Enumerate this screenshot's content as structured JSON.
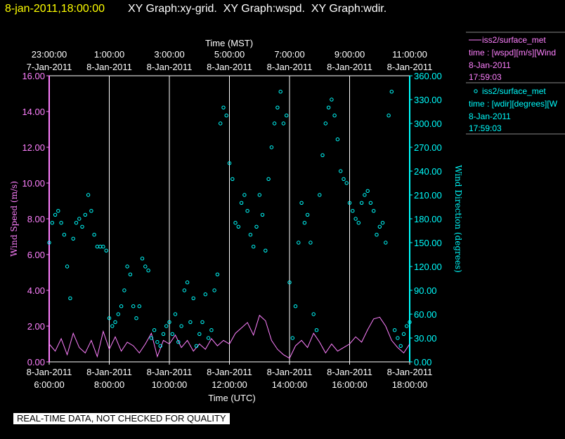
{
  "header": {
    "timestamp": "8-jan-2011,18:00:00",
    "graphs": "XY Graph:xy-grid.  XY Graph:wspd.  XY Graph:wdir."
  },
  "colors": {
    "wspd": "#ff80ff",
    "wdir": "#00ffff",
    "grid": "#ffffff",
    "timestamp": "#ffff00",
    "background": "#000000"
  },
  "legend": {
    "wspd": {
      "line1": "iss2/surface_met",
      "line2": "time : [wspd][m/s][Wind",
      "line3": "8-Jan-2011",
      "line4": "17:59:03"
    },
    "wdir": {
      "line1": "iss2/surface_met",
      "line2": "time : [wdir][degrees][W",
      "line3": "8-Jan-2011",
      "line4": "17:59:03"
    }
  },
  "quality_note": "REAL-TIME DATA, NOT CHECKED FOR QUALITY",
  "chart_data": {
    "type": "scatter",
    "top_axis": {
      "label": "Time (MST)",
      "ticks": [
        {
          "time": "23:00:00",
          "date": "7-Jan-2011",
          "utc_hour": 6
        },
        {
          "time": "1:00:00",
          "date": "8-Jan-2011",
          "utc_hour": 8
        },
        {
          "time": "3:00:00",
          "date": "8-Jan-2011",
          "utc_hour": 10
        },
        {
          "time": "5:00:00",
          "date": "8-Jan-2011",
          "utc_hour": 12
        },
        {
          "time": "7:00:00",
          "date": "8-Jan-2011",
          "utc_hour": 14
        },
        {
          "time": "9:00:00",
          "date": "8-Jan-2011",
          "utc_hour": 16
        },
        {
          "time": "11:00:00",
          "date": "8-Jan-2011",
          "utc_hour": 18
        }
      ]
    },
    "bottom_axis": {
      "label": "Time (UTC)",
      "ticks": [
        {
          "date": "8-Jan-2011",
          "time": "6:00:00",
          "utc_hour": 6
        },
        {
          "date": "8-Jan-2011",
          "time": "8:00:00",
          "utc_hour": 8
        },
        {
          "date": "8-Jan-2011",
          "time": "10:00:00",
          "utc_hour": 10
        },
        {
          "date": "8-Jan-2011",
          "time": "12:00:00",
          "utc_hour": 12
        },
        {
          "date": "8-Jan-2011",
          "time": "14:00:00",
          "utc_hour": 14
        },
        {
          "date": "8-Jan-2011",
          "time": "16:00:00",
          "utc_hour": 16
        },
        {
          "date": "8-Jan-2011",
          "time": "18:00:00",
          "utc_hour": 18
        }
      ],
      "xlim": [
        6,
        18
      ]
    },
    "left_axis": {
      "label": "Wind Speed (m/s)",
      "ylim": [
        0,
        16
      ],
      "ticks": [
        "0.00",
        "2.00",
        "4.00",
        "6.00",
        "8.00",
        "10.00",
        "12.00",
        "14.00",
        "16.00"
      ]
    },
    "right_axis": {
      "label": "Wind Direction (degrees)",
      "ylim": [
        0,
        360
      ],
      "ticks": [
        "0.00",
        "30.00",
        "60.00",
        "90.00",
        "120.00",
        "150.00",
        "180.00",
        "210.00",
        "240.00",
        "270.00",
        "300.00",
        "330.00",
        "360.00"
      ]
    },
    "vertical_grid_utc_hours": [
      8,
      10,
      12,
      14,
      16,
      18
    ],
    "series": [
      {
        "name": "iss2/surface_met wspd",
        "style": "line",
        "x": [
          6.0,
          6.2,
          6.4,
          6.6,
          6.8,
          7.0,
          7.2,
          7.4,
          7.6,
          7.8,
          8.0,
          8.2,
          8.4,
          8.6,
          8.8,
          9.0,
          9.2,
          9.4,
          9.6,
          9.8,
          10.0,
          10.2,
          10.4,
          10.6,
          10.8,
          11.0,
          11.2,
          11.4,
          11.6,
          11.8,
          12.0,
          12.2,
          12.4,
          12.6,
          12.8,
          13.0,
          13.2,
          13.4,
          13.6,
          13.8,
          14.0,
          14.2,
          14.4,
          14.6,
          14.8,
          15.0,
          15.2,
          15.4,
          15.6,
          15.8,
          16.0,
          16.2,
          16.4,
          16.6,
          16.8,
          17.0,
          17.2,
          17.4,
          17.6,
          17.8,
          18.0
        ],
        "values": [
          1.0,
          0.6,
          1.3,
          0.4,
          1.6,
          0.8,
          0.5,
          1.2,
          0.3,
          1.7,
          0.7,
          1.4,
          0.6,
          1.1,
          0.9,
          0.5,
          1.0,
          1.6,
          0.3,
          1.2,
          1.0,
          1.5,
          0.8,
          1.2,
          0.6,
          1.0,
          0.7,
          1.3,
          0.9,
          1.2,
          1.0,
          1.6,
          1.9,
          2.2,
          1.5,
          2.6,
          2.3,
          1.2,
          0.7,
          0.4,
          0.2,
          0.9,
          1.2,
          0.8,
          1.6,
          1.1,
          0.5,
          1.0,
          0.6,
          0.8,
          1.0,
          1.4,
          1.1,
          1.8,
          2.4,
          2.5,
          2.0,
          1.2,
          0.8,
          0.5,
          1.0
        ]
      },
      {
        "name": "iss2/surface_met wdir",
        "style": "circles",
        "x": [
          6.0,
          6.1,
          6.2,
          6.3,
          6.4,
          6.5,
          6.6,
          6.7,
          6.8,
          6.9,
          7.0,
          7.1,
          7.2,
          7.3,
          7.4,
          7.5,
          7.6,
          7.7,
          7.8,
          7.9,
          8.0,
          8.1,
          8.2,
          8.3,
          8.4,
          8.5,
          8.6,
          8.7,
          8.8,
          8.9,
          9.0,
          9.1,
          9.2,
          9.3,
          9.4,
          9.5,
          9.6,
          9.7,
          9.8,
          9.9,
          10.0,
          10.1,
          10.2,
          10.3,
          10.4,
          10.5,
          10.6,
          10.7,
          10.8,
          10.9,
          11.0,
          11.1,
          11.2,
          11.3,
          11.4,
          11.5,
          11.6,
          11.7,
          11.8,
          11.9,
          12.0,
          12.1,
          12.2,
          12.3,
          12.4,
          12.5,
          12.6,
          12.7,
          12.8,
          12.9,
          13.0,
          13.1,
          13.2,
          13.3,
          13.4,
          13.5,
          13.6,
          13.7,
          13.8,
          13.9,
          14.0,
          14.1,
          14.2,
          14.3,
          14.4,
          14.5,
          14.6,
          14.7,
          14.8,
          14.9,
          15.0,
          15.1,
          15.2,
          15.3,
          15.4,
          15.5,
          15.6,
          15.7,
          15.8,
          15.9,
          16.0,
          16.1,
          16.2,
          16.3,
          16.4,
          16.5,
          16.6,
          16.7,
          16.8,
          16.9,
          17.0,
          17.1,
          17.2,
          17.3,
          17.4,
          17.5,
          17.6,
          17.7,
          17.8,
          17.9,
          18.0
        ],
        "values": [
          150,
          175,
          185,
          190,
          175,
          160,
          120,
          80,
          155,
          175,
          180,
          170,
          185,
          210,
          190,
          160,
          145,
          145,
          145,
          140,
          55,
          45,
          50,
          60,
          70,
          90,
          120,
          110,
          70,
          55,
          70,
          130,
          120,
          115,
          30,
          40,
          25,
          20,
          35,
          45,
          50,
          35,
          60,
          25,
          45,
          90,
          100,
          50,
          80,
          20,
          35,
          50,
          85,
          30,
          40,
          90,
          110,
          300,
          320,
          310,
          250,
          230,
          175,
          170,
          200,
          210,
          190,
          160,
          145,
          170,
          210,
          185,
          140,
          230,
          270,
          300,
          320,
          340,
          300,
          310,
          100,
          30,
          70,
          150,
          200,
          175,
          185,
          150,
          60,
          40,
          210,
          260,
          300,
          320,
          330,
          310,
          280,
          240,
          230,
          225,
          200,
          190,
          180,
          175,
          200,
          210,
          215,
          200,
          190,
          160,
          170,
          175,
          150,
          310,
          340,
          40,
          30,
          20,
          35,
          45,
          50
        ]
      }
    ]
  }
}
